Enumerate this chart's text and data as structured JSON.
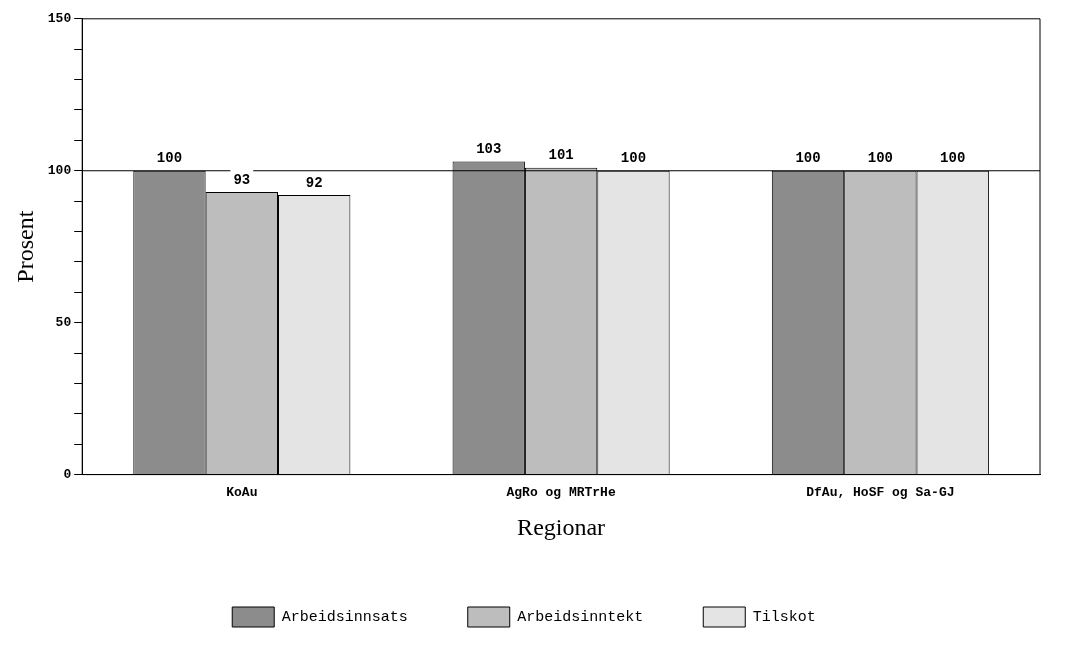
{
  "chart_data": {
    "type": "bar",
    "xlabel": "Regionar",
    "ylabel": "Prosent",
    "categories": [
      "KoAu",
      "AgRo og MRTrHe",
      "DfAu, HoSF og Sa-GJ"
    ],
    "series": [
      {
        "name": "Arbeidsinnsats",
        "color": "#8c8c8c",
        "values": [
          100,
          103,
          100
        ]
      },
      {
        "name": "Arbeidsinntekt",
        "color": "#bdbdbd",
        "values": [
          93,
          101,
          100
        ]
      },
      {
        "name": "Tilskot",
        "color": "#e4e4e4",
        "values": [
          92,
          100,
          100
        ]
      }
    ],
    "ylim": [
      0,
      150
    ],
    "yticks": [
      0,
      {
        "value": 10,
        "label": null
      },
      {
        "value": 20,
        "label": null
      },
      {
        "value": 30,
        "label": null
      },
      {
        "value": 40,
        "label": null
      },
      50,
      {
        "value": 60,
        "label": null
      },
      {
        "value": 70,
        "label": null
      },
      {
        "value": 80,
        "label": null
      },
      {
        "value": 90,
        "label": null
      },
      100,
      {
        "value": 110,
        "label": null
      },
      {
        "value": 120,
        "label": null
      },
      {
        "value": 130,
        "label": null
      },
      {
        "value": 140,
        "label": null
      },
      150
    ],
    "ref_lines": [
      {
        "axis": "y",
        "value": 100,
        "color": "#000000"
      }
    ],
    "data_labels": true,
    "legend": "bottom",
    "grid": false
  }
}
